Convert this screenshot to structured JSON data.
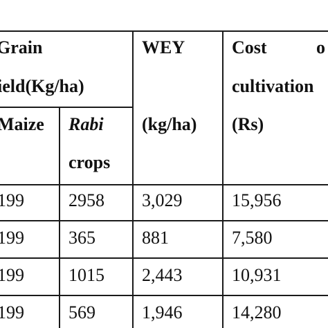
{
  "header": {
    "grain_line1": "Grain",
    "grain_line2": "ield(Kg/ha)",
    "wey": "WEY",
    "cost_word": "Cost",
    "cost_of": "o",
    "cultivation": "cultivation",
    "maize": "Maize",
    "rabi": "Rabi",
    "crops": "crops",
    "wey_unit": "(kg/ha)",
    "cost_unit": "(Rs)"
  },
  "rows": [
    {
      "maize": "199",
      "rabi": "2958",
      "wey": "3,029",
      "cost": "15,956"
    },
    {
      "maize": "199",
      "rabi": "365",
      "wey": "881",
      "cost": "7,580"
    },
    {
      "maize": "199",
      "rabi": "1015",
      "wey": "2,443",
      "cost": "10,931"
    },
    {
      "maize": "199",
      "rabi": "569",
      "wey": "1,946",
      "cost": "14,280"
    }
  ]
}
